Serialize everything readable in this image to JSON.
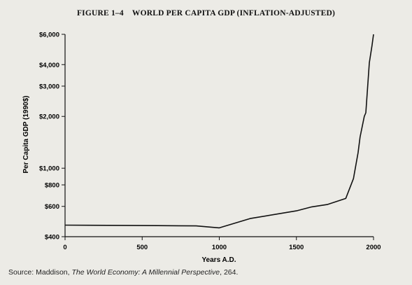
{
  "chart_data": {
    "type": "line",
    "title": "FIGURE 1–4    WORLD PER CAPITA GDP (INFLATION-ADJUSTED)",
    "xlabel": "Years A.D.",
    "ylabel": "Per Capita GDP (1990$)",
    "xlim": [
      0,
      2000
    ],
    "ylim": [
      400,
      6000
    ],
    "yscale": "log",
    "grid": false,
    "x_ticks": [
      0,
      500,
      1000,
      1500,
      2000
    ],
    "x_tick_labels": [
      "0",
      "500",
      "1000",
      "1500",
      "2000"
    ],
    "y_ticks": [
      400,
      600,
      800,
      1000,
      2000,
      3000,
      4000,
      6000
    ],
    "y_tick_labels": [
      "$400",
      "$600",
      "$800",
      "$1,000",
      "$2,000",
      "$3,000",
      "$4,000",
      "$6,000"
    ],
    "series": [
      {
        "x": [
          0,
          400,
          600,
          850,
          1000,
          1200,
          1500,
          1600,
          1700,
          1820,
          1870,
          1900,
          1913,
          1940,
          1950,
          1973,
          1990,
          2000
        ],
        "values": [
          467,
          465,
          464,
          462,
          450,
          510,
          565,
          596,
          615,
          667,
          870,
          1230,
          1520,
          2000,
          2100,
          4100,
          5150,
          6000
        ]
      }
    ]
  },
  "source": {
    "prefix": "Source: Maddison, ",
    "italic": "The World Economy: A Millennial Perspective",
    "suffix": ", 264."
  }
}
